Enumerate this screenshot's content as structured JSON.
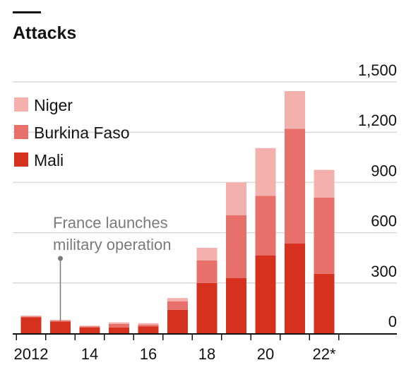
{
  "chart_data": {
    "type": "bar",
    "stacked": true,
    "title": "Attacks",
    "categories": [
      "2012",
      "13",
      "14",
      "15",
      "16",
      "17",
      "18",
      "19",
      "20",
      "21",
      "22*"
    ],
    "x_tick_labels": [
      "2012",
      "14",
      "16",
      "18",
      "20",
      "22*"
    ],
    "y_ticks": [
      0,
      300,
      600,
      900,
      "1,200",
      "1,500"
    ],
    "ylim": [
      0,
      1500
    ],
    "grid": true,
    "legend_position": "top-left",
    "series": [
      {
        "name": "Mali",
        "color": "#d6301f",
        "values": [
          95,
          70,
          35,
          35,
          40,
          140,
          300,
          330,
          465,
          535,
          355
        ]
      },
      {
        "name": "Burkina Faso",
        "color": "#e8706a",
        "values": [
          5,
          5,
          5,
          20,
          10,
          50,
          135,
          375,
          355,
          685,
          455
        ]
      },
      {
        "name": "Niger",
        "color": "#f4b0ac",
        "values": [
          5,
          5,
          5,
          10,
          10,
          20,
          75,
          195,
          285,
          225,
          165
        ]
      }
    ],
    "annotation": {
      "category": "13",
      "lines": [
        "France launches",
        "military operation"
      ]
    }
  }
}
